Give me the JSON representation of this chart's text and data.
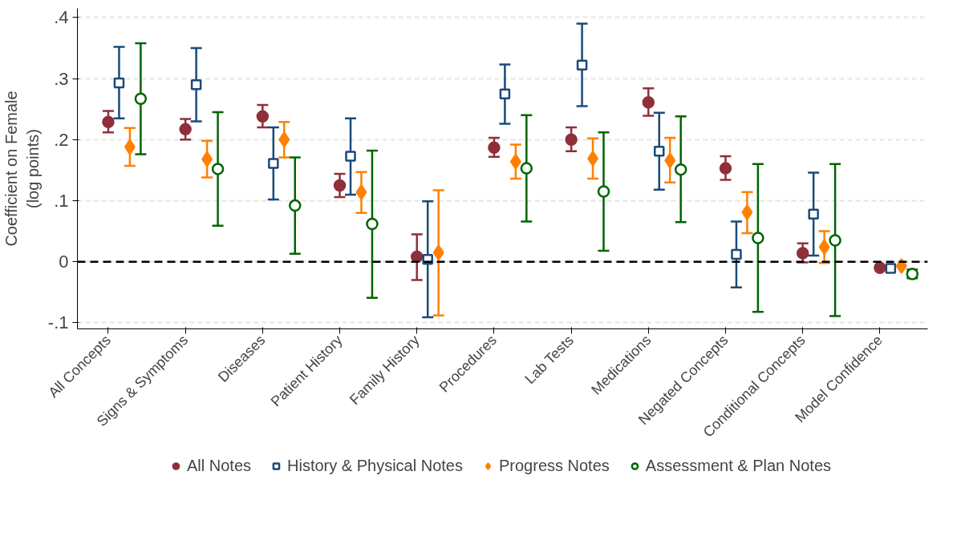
{
  "chart_data": {
    "type": "scatter",
    "ylabel": "Coefficient on Female\n(log points)",
    "categories": [
      "All Concepts",
      "Signs & Symptoms",
      "Diseases",
      "Patient History",
      "Family History",
      "Procedures",
      "Lab Tests",
      "Medications",
      "Negated Concepts",
      "Conditional Concepts",
      "Model Confidence"
    ],
    "series": [
      {
        "name": "All Notes",
        "color": "#8f2f3a",
        "marker": "circle",
        "values": [
          0.229,
          0.217,
          0.238,
          0.125,
          0.008,
          0.187,
          0.2,
          0.261,
          0.153,
          0.014,
          -0.01
        ],
        "errors": [
          [
            0.212,
            0.247
          ],
          [
            0.2,
            0.234
          ],
          [
            0.22,
            0.257
          ],
          [
            0.106,
            0.144
          ],
          [
            -0.03,
            0.045
          ],
          [
            0.172,
            0.203
          ],
          [
            0.181,
            0.22
          ],
          [
            0.239,
            0.284
          ],
          [
            0.134,
            0.173
          ],
          [
            -0.001,
            0.03
          ],
          null
        ]
      },
      {
        "name": "History & Physical Notes",
        "color": "#1a4a7a",
        "marker": "square",
        "values": [
          0.293,
          0.29,
          0.161,
          0.173,
          0.004,
          0.275,
          0.322,
          0.181,
          0.012,
          0.078,
          -0.011
        ],
        "errors": [
          [
            0.235,
            0.352
          ],
          [
            0.23,
            0.35
          ],
          [
            0.102,
            0.22
          ],
          [
            0.11,
            0.235
          ],
          [
            -0.091,
            0.099
          ],
          [
            0.226,
            0.323
          ],
          [
            0.255,
            0.39
          ],
          [
            0.118,
            0.244
          ],
          [
            -0.042,
            0.066
          ],
          [
            0.01,
            0.146
          ],
          null
        ]
      },
      {
        "name": "Progress Notes",
        "color": "#ff8000",
        "marker": "diamond",
        "values": [
          0.188,
          0.168,
          0.2,
          0.114,
          0.015,
          0.164,
          0.169,
          0.166,
          0.081,
          0.024,
          -0.007
        ],
        "errors": [
          [
            0.157,
            0.219
          ],
          [
            0.138,
            0.198
          ],
          [
            0.171,
            0.229
          ],
          [
            0.08,
            0.147
          ],
          [
            -0.088,
            0.117
          ],
          [
            0.136,
            0.192
          ],
          [
            0.136,
            0.202
          ],
          [
            0.13,
            0.203
          ],
          [
            0.047,
            0.114
          ],
          [
            -0.002,
            0.05
          ],
          null
        ]
      },
      {
        "name": "Assessment & Plan Notes",
        "color": "#006400",
        "marker": "circle",
        "values": [
          0.267,
          0.152,
          0.092,
          0.062,
          null,
          0.153,
          0.115,
          0.151,
          0.039,
          0.035,
          -0.02
        ],
        "errors": [
          [
            0.176,
            0.358
          ],
          [
            0.059,
            0.245
          ],
          [
            0.013,
            0.171
          ],
          [
            -0.059,
            0.182
          ],
          null,
          [
            0.066,
            0.24
          ],
          [
            0.018,
            0.212
          ],
          [
            0.065,
            0.238
          ],
          [
            -0.082,
            0.16
          ],
          [
            -0.089,
            0.16
          ],
          [
            -0.027,
            -0.013
          ]
        ]
      }
    ],
    "ylim": [
      -0.11,
      0.415
    ],
    "yticks": [
      {
        "value": -0.1,
        "label": "-.1"
      },
      0,
      {
        "value": 0.1,
        "label": ".1"
      },
      {
        "value": 0.2,
        "label": ".2"
      },
      {
        "value": 0.3,
        "label": ".3"
      },
      {
        "value": 0.4,
        "label": ".4"
      }
    ],
    "ref_lines": [
      {
        "axis": "y",
        "value": 0,
        "color": "#000000",
        "line_style": "dashed"
      }
    ],
    "grid": "y",
    "legend": "bottom"
  }
}
